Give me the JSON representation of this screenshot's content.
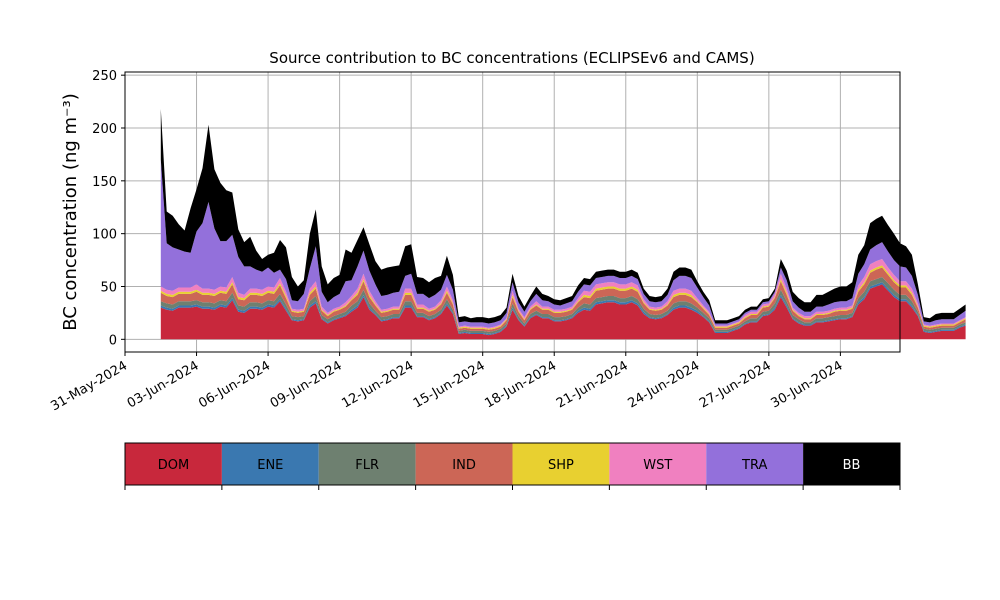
{
  "chart_data": {
    "type": "area",
    "stacked": true,
    "title": "Source contribution to BC concentrations (ECLIPSEv6 and CAMS)",
    "ylabel": "BC concentration (ng m⁻³)",
    "xlabel": "",
    "ylim": [
      -12,
      253
    ],
    "yticks": [
      0,
      50,
      100,
      150,
      200,
      250
    ],
    "xlim": [
      "2024-05-31T00:00",
      "2024-07-02T12:00"
    ],
    "xticks": [
      "31-May-2024",
      "03-Jun-2024",
      "06-Jun-2024",
      "09-Jun-2024",
      "12-Jun-2024",
      "15-Jun-2024",
      "18-Jun-2024",
      "21-Jun-2024",
      "24-Jun-2024",
      "27-Jun-2024",
      "30-Jun-2024"
    ],
    "x_start": "2024-06-01T12:00",
    "x_step_hours": 6,
    "grid": true,
    "legend_placement": "bottom colorbar",
    "series": [
      {
        "name": "DOM",
        "color": "#c8283c",
        "values": [
          30,
          28,
          27,
          30,
          30,
          30,
          31,
          29,
          29,
          28,
          31,
          30,
          37,
          26,
          25,
          29,
          29,
          28,
          31,
          30,
          36,
          27,
          18,
          17,
          18,
          30,
          34,
          19,
          15,
          18,
          20,
          22,
          26,
          30,
          40,
          28,
          23,
          17,
          18,
          20,
          20,
          30,
          30,
          21,
          21,
          18,
          20,
          24,
          32,
          24,
          5,
          6,
          5,
          5,
          5,
          4,
          5,
          7,
          12,
          28,
          18,
          12,
          20,
          23,
          20,
          20,
          17,
          17,
          18,
          20,
          25,
          28,
          27,
          33,
          34,
          35,
          35,
          33,
          33,
          35,
          32,
          24,
          20,
          19,
          20,
          23,
          28,
          30,
          30,
          28,
          25,
          21,
          16,
          6,
          6,
          6,
          8,
          10,
          14,
          16,
          16,
          22,
          23,
          28,
          40,
          30,
          19,
          15,
          13,
          13,
          16,
          16,
          17,
          18,
          19,
          19,
          21,
          33,
          38,
          48,
          50,
          52,
          46,
          40,
          36,
          36,
          30,
          22,
          7,
          6,
          7,
          8,
          8,
          8,
          11,
          13
        ]
      },
      {
        "name": "ENE",
        "color": "#3a78b0",
        "values": [
          2,
          2,
          2,
          2,
          2,
          2,
          2,
          2,
          2,
          2,
          2,
          2,
          2,
          2,
          2,
          2,
          2,
          2,
          2,
          2,
          2,
          2,
          1,
          1,
          1,
          2,
          2,
          1,
          1,
          1,
          1,
          1,
          2,
          2,
          2,
          2,
          1,
          1,
          1,
          1,
          1,
          2,
          2,
          1,
          1,
          1,
          1,
          1,
          2,
          1,
          1,
          1,
          1,
          1,
          1,
          1,
          1,
          1,
          1,
          2,
          1,
          1,
          1,
          1,
          1,
          1,
          1,
          1,
          1,
          1,
          2,
          2,
          2,
          2,
          2,
          2,
          2,
          2,
          2,
          2,
          2,
          2,
          1,
          1,
          1,
          1,
          2,
          2,
          2,
          2,
          2,
          1,
          1,
          1,
          1,
          1,
          1,
          1,
          1,
          1,
          1,
          1,
          1,
          2,
          2,
          2,
          1,
          1,
          1,
          1,
          1,
          1,
          1,
          1,
          1,
          1,
          1,
          2,
          2,
          2,
          2,
          2,
          2,
          2,
          2,
          2,
          2,
          1,
          1,
          1,
          1,
          1,
          1,
          1,
          1,
          1
        ]
      },
      {
        "name": "FLR",
        "color": "#6e8070",
        "values": [
          4,
          4,
          4,
          4,
          4,
          4,
          4,
          4,
          4,
          4,
          4,
          4,
          5,
          4,
          4,
          4,
          4,
          4,
          4,
          4,
          5,
          4,
          3,
          3,
          3,
          4,
          5,
          3,
          3,
          3,
          3,
          3,
          4,
          4,
          5,
          4,
          3,
          3,
          3,
          3,
          3,
          4,
          4,
          3,
          3,
          3,
          3,
          3,
          4,
          3,
          2,
          2,
          2,
          2,
          2,
          2,
          2,
          2,
          2,
          4,
          3,
          2,
          3,
          3,
          3,
          3,
          3,
          3,
          3,
          3,
          3,
          4,
          4,
          4,
          4,
          4,
          4,
          4,
          4,
          4,
          4,
          3,
          3,
          3,
          3,
          3,
          4,
          4,
          4,
          4,
          3,
          3,
          3,
          2,
          2,
          2,
          2,
          2,
          2,
          3,
          3,
          3,
          3,
          4,
          5,
          4,
          3,
          3,
          2,
          2,
          3,
          3,
          3,
          3,
          3,
          3,
          3,
          4,
          5,
          5,
          5,
          5,
          5,
          5,
          4,
          4,
          4,
          3,
          2,
          2,
          2,
          2,
          2,
          2,
          2,
          2
        ]
      },
      {
        "name": "IND",
        "color": "#cc6656",
        "values": [
          8,
          7,
          7,
          7,
          7,
          7,
          8,
          7,
          7,
          7,
          7,
          7,
          8,
          6,
          6,
          7,
          7,
          7,
          7,
          7,
          8,
          6,
          4,
          4,
          4,
          6,
          7,
          4,
          3,
          4,
          4,
          5,
          5,
          6,
          8,
          6,
          5,
          4,
          4,
          4,
          4,
          6,
          6,
          4,
          4,
          4,
          4,
          5,
          6,
          5,
          2,
          2,
          2,
          2,
          2,
          2,
          2,
          2,
          3,
          6,
          4,
          3,
          4,
          5,
          4,
          4,
          4,
          4,
          4,
          4,
          5,
          6,
          6,
          7,
          7,
          7,
          7,
          7,
          7,
          7,
          7,
          5,
          4,
          4,
          4,
          5,
          6,
          6,
          6,
          6,
          5,
          4,
          3,
          2,
          2,
          2,
          2,
          2,
          3,
          3,
          3,
          4,
          4,
          5,
          8,
          6,
          4,
          3,
          3,
          3,
          3,
          3,
          3,
          4,
          4,
          4,
          4,
          6,
          7,
          8,
          9,
          9,
          8,
          7,
          7,
          7,
          6,
          4,
          2,
          2,
          2,
          2,
          2,
          2,
          2,
          3
        ]
      },
      {
        "name": "SHP",
        "color": "#e8d030",
        "values": [
          2,
          2,
          2,
          2,
          2,
          2,
          2,
          2,
          2,
          2,
          2,
          2,
          2,
          2,
          2,
          2,
          2,
          2,
          2,
          2,
          2,
          2,
          1,
          1,
          1,
          2,
          2,
          1,
          1,
          1,
          1,
          1,
          1,
          2,
          2,
          2,
          1,
          1,
          1,
          1,
          1,
          2,
          2,
          1,
          1,
          1,
          1,
          1,
          2,
          1,
          1,
          1,
          1,
          1,
          1,
          1,
          1,
          1,
          1,
          2,
          1,
          1,
          1,
          1,
          1,
          1,
          1,
          1,
          1,
          1,
          1,
          2,
          2,
          2,
          2,
          2,
          2,
          2,
          2,
          2,
          2,
          1,
          1,
          1,
          1,
          1,
          2,
          2,
          2,
          2,
          1,
          1,
          1,
          1,
          1,
          1,
          1,
          1,
          1,
          1,
          1,
          1,
          1,
          1,
          2,
          2,
          1,
          1,
          1,
          1,
          1,
          1,
          1,
          1,
          1,
          1,
          1,
          2,
          2,
          2,
          2,
          2,
          2,
          2,
          2,
          2,
          2,
          1,
          1,
          1,
          1,
          1,
          1,
          1,
          1,
          1
        ]
      },
      {
        "name": "WST",
        "color": "#f080c0",
        "values": [
          4,
          4,
          4,
          4,
          4,
          4,
          5,
          4,
          4,
          4,
          4,
          4,
          5,
          4,
          3,
          4,
          4,
          4,
          4,
          4,
          5,
          4,
          2,
          2,
          2,
          4,
          5,
          3,
          2,
          2,
          2,
          3,
          3,
          4,
          5,
          4,
          3,
          2,
          2,
          2,
          2,
          4,
          4,
          3,
          3,
          2,
          2,
          3,
          4,
          3,
          1,
          1,
          1,
          1,
          1,
          1,
          1,
          1,
          1,
          4,
          2,
          2,
          2,
          3,
          2,
          2,
          2,
          2,
          2,
          2,
          3,
          4,
          4,
          4,
          4,
          4,
          4,
          4,
          4,
          4,
          4,
          3,
          2,
          2,
          2,
          3,
          4,
          4,
          4,
          4,
          3,
          2,
          2,
          1,
          1,
          1,
          1,
          1,
          2,
          2,
          2,
          2,
          2,
          3,
          5,
          4,
          2,
          2,
          2,
          2,
          2,
          2,
          2,
          2,
          2,
          2,
          2,
          4,
          5,
          6,
          6,
          6,
          5,
          5,
          4,
          4,
          4,
          3,
          1,
          1,
          1,
          1,
          1,
          1,
          1,
          1
        ]
      },
      {
        "name": "TRA",
        "color": "#9370db",
        "values": [
          120,
          44,
          41,
          36,
          34,
          33,
          50,
          62,
          82,
          58,
          43,
          44,
          40,
          34,
          27,
          21,
          18,
          17,
          18,
          14,
          8,
          12,
          8,
          8,
          14,
          19,
          33,
          14,
          10,
          11,
          12,
          20,
          15,
          21,
          22,
          19,
          16,
          13,
          13,
          13,
          14,
          12,
          14,
          10,
          10,
          10,
          11,
          10,
          11,
          10,
          4,
          4,
          4,
          4,
          4,
          4,
          4,
          4,
          5,
          8,
          6,
          5,
          5,
          7,
          6,
          5,
          5,
          4,
          5,
          5,
          6,
          6,
          6,
          6,
          6,
          6,
          6,
          6,
          6,
          6,
          6,
          5,
          5,
          5,
          5,
          6,
          10,
          12,
          12,
          12,
          10,
          8,
          6,
          2,
          2,
          2,
          2,
          2,
          2,
          2,
          2,
          2,
          2,
          2,
          6,
          8,
          6,
          5,
          4,
          4,
          5,
          5,
          6,
          6,
          6,
          6,
          7,
          11,
          12,
          14,
          15,
          16,
          15,
          14,
          14,
          13,
          12,
          8,
          3,
          3,
          4,
          4,
          4,
          4,
          5,
          6
        ]
      },
      {
        "name": "BB",
        "color": "#000000",
        "values": [
          48,
          30,
          30,
          24,
          20,
          42,
          40,
          52,
          73,
          56,
          55,
          48,
          40,
          26,
          23,
          28,
          18,
          12,
          12,
          19,
          28,
          30,
          22,
          14,
          13,
          33,
          35,
          24,
          17,
          18,
          18,
          30,
          26,
          25,
          22,
          25,
          22,
          25,
          26,
          25,
          25,
          28,
          28,
          16,
          15,
          15,
          16,
          13,
          18,
          14,
          5,
          5,
          4,
          5,
          5,
          5,
          5,
          5,
          5,
          8,
          6,
          5,
          5,
          7,
          6,
          5,
          5,
          5,
          5,
          5,
          6,
          6,
          6,
          6,
          6,
          6,
          6,
          6,
          6,
          6,
          6,
          5,
          5,
          5,
          5,
          6,
          8,
          8,
          8,
          8,
          6,
          5,
          5,
          3,
          3,
          3,
          3,
          3,
          3,
          3,
          3,
          3,
          3,
          3,
          8,
          9,
          9,
          9,
          9,
          9,
          11,
          11,
          12,
          13,
          14,
          14,
          15,
          18,
          18,
          25,
          25,
          25,
          25,
          25,
          22,
          20,
          20,
          10,
          4,
          4,
          6,
          6,
          6,
          6,
          6,
          6
        ]
      }
    ]
  },
  "colors": {
    "grid": "#b0b0b0",
    "axis": "#000000"
  }
}
